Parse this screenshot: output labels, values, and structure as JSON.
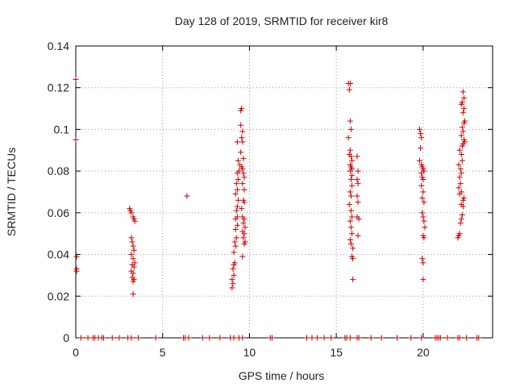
{
  "chart_data": {
    "type": "scatter",
    "title": "Day 128 of 2019, SRMTID for receiver kir8",
    "xlabel": "GPS time / hours",
    "ylabel": "SRMTID / TECUs",
    "xlim": [
      0,
      24
    ],
    "ylim": [
      0,
      0.14
    ],
    "xticks": [
      0,
      5,
      10,
      15,
      20
    ],
    "xtick_labels": [
      "0",
      "5",
      "10",
      "15",
      "20"
    ],
    "yticks": [
      0,
      0.02,
      0.04,
      0.06,
      0.08,
      0.1,
      0.12,
      0.14
    ],
    "ytick_labels": [
      "0",
      "0.02",
      "0.04",
      "0.06",
      "0.08",
      "0.1",
      "0.12",
      "0.14"
    ],
    "grid": true,
    "marker": "+",
    "series": [
      {
        "name": "SRMTID",
        "color": "#cc0000",
        "points": [
          [
            0.0,
            0.124
          ],
          [
            0.0,
            0.095
          ],
          [
            0.05,
            0.039
          ],
          [
            0.05,
            0.033
          ],
          [
            0.05,
            0.032
          ],
          [
            3.1,
            0.062
          ],
          [
            3.15,
            0.061
          ],
          [
            3.2,
            0.06
          ],
          [
            3.3,
            0.058
          ],
          [
            3.35,
            0.057
          ],
          [
            3.4,
            0.056
          ],
          [
            3.2,
            0.048
          ],
          [
            3.25,
            0.046
          ],
          [
            3.3,
            0.044
          ],
          [
            3.35,
            0.042
          ],
          [
            3.2,
            0.04
          ],
          [
            3.3,
            0.038
          ],
          [
            3.4,
            0.036
          ],
          [
            3.25,
            0.035
          ],
          [
            3.35,
            0.034
          ],
          [
            3.2,
            0.032
          ],
          [
            3.3,
            0.031
          ],
          [
            3.25,
            0.029
          ],
          [
            3.35,
            0.028
          ],
          [
            3.3,
            0.027
          ],
          [
            3.3,
            0.021
          ],
          [
            6.4,
            0.068
          ],
          [
            9.0,
            0.024
          ],
          [
            9.05,
            0.026
          ],
          [
            9.0,
            0.028
          ],
          [
            9.1,
            0.03
          ],
          [
            9.05,
            0.033
          ],
          [
            9.1,
            0.035
          ],
          [
            9.15,
            0.036
          ],
          [
            9.1,
            0.041
          ],
          [
            9.2,
            0.044
          ],
          [
            9.15,
            0.046
          ],
          [
            9.25,
            0.048
          ],
          [
            9.2,
            0.052
          ],
          [
            9.3,
            0.054
          ],
          [
            9.2,
            0.057
          ],
          [
            9.3,
            0.058
          ],
          [
            9.25,
            0.061
          ],
          [
            9.3,
            0.063
          ],
          [
            9.35,
            0.066
          ],
          [
            9.2,
            0.069
          ],
          [
            9.3,
            0.071
          ],
          [
            9.25,
            0.074
          ],
          [
            9.35,
            0.076
          ],
          [
            9.3,
            0.079
          ],
          [
            9.4,
            0.08
          ],
          [
            9.45,
            0.083
          ],
          [
            9.35,
            0.085
          ],
          [
            9.3,
            0.094
          ],
          [
            9.5,
            0.109
          ],
          [
            9.55,
            0.11
          ],
          [
            9.5,
            0.102
          ],
          [
            9.6,
            0.099
          ],
          [
            9.55,
            0.096
          ],
          [
            9.6,
            0.094
          ],
          [
            9.5,
            0.089
          ],
          [
            9.65,
            0.086
          ],
          [
            9.55,
            0.082
          ],
          [
            9.6,
            0.081
          ],
          [
            9.65,
            0.079
          ],
          [
            9.7,
            0.077
          ],
          [
            9.6,
            0.074
          ],
          [
            9.7,
            0.071
          ],
          [
            9.65,
            0.066
          ],
          [
            9.7,
            0.065
          ],
          [
            9.55,
            0.062
          ],
          [
            9.6,
            0.058
          ],
          [
            9.7,
            0.057
          ],
          [
            9.65,
            0.055
          ],
          [
            9.75,
            0.053
          ],
          [
            9.6,
            0.051
          ],
          [
            9.7,
            0.05
          ],
          [
            9.65,
            0.048
          ],
          [
            9.75,
            0.046
          ],
          [
            9.7,
            0.045
          ],
          [
            9.6,
            0.039
          ],
          [
            15.7,
            0.122
          ],
          [
            15.8,
            0.122
          ],
          [
            15.75,
            0.119
          ],
          [
            15.8,
            0.104
          ],
          [
            15.85,
            0.1
          ],
          [
            15.7,
            0.096
          ],
          [
            15.8,
            0.09
          ],
          [
            15.75,
            0.088
          ],
          [
            15.85,
            0.087
          ],
          [
            15.9,
            0.085
          ],
          [
            15.8,
            0.083
          ],
          [
            15.85,
            0.082
          ],
          [
            15.9,
            0.081
          ],
          [
            15.8,
            0.08
          ],
          [
            15.9,
            0.078
          ],
          [
            15.85,
            0.076
          ],
          [
            15.9,
            0.073
          ],
          [
            15.8,
            0.07
          ],
          [
            15.85,
            0.068
          ],
          [
            15.75,
            0.064
          ],
          [
            15.85,
            0.061
          ],
          [
            15.9,
            0.058
          ],
          [
            15.8,
            0.056
          ],
          [
            15.85,
            0.053
          ],
          [
            15.9,
            0.05
          ],
          [
            15.8,
            0.047
          ],
          [
            15.85,
            0.045
          ],
          [
            15.95,
            0.043
          ],
          [
            15.9,
            0.039
          ],
          [
            15.95,
            0.038
          ],
          [
            15.95,
            0.028
          ],
          [
            16.2,
            0.087
          ],
          [
            16.25,
            0.08
          ],
          [
            16.2,
            0.076
          ],
          [
            16.25,
            0.074
          ],
          [
            16.2,
            0.068
          ],
          [
            16.25,
            0.065
          ],
          [
            16.2,
            0.058
          ],
          [
            16.3,
            0.057
          ],
          [
            16.25,
            0.049
          ],
          [
            19.8,
            0.1
          ],
          [
            19.85,
            0.098
          ],
          [
            19.9,
            0.096
          ],
          [
            19.85,
            0.091
          ],
          [
            19.8,
            0.085
          ],
          [
            19.9,
            0.083
          ],
          [
            19.95,
            0.082
          ],
          [
            20.0,
            0.081
          ],
          [
            19.9,
            0.079
          ],
          [
            20.05,
            0.08
          ],
          [
            19.95,
            0.077
          ],
          [
            20.0,
            0.076
          ],
          [
            19.9,
            0.073
          ],
          [
            20.0,
            0.07
          ],
          [
            19.95,
            0.067
          ],
          [
            20.05,
            0.065
          ],
          [
            19.95,
            0.06
          ],
          [
            20.0,
            0.058
          ],
          [
            20.05,
            0.056
          ],
          [
            20.1,
            0.053
          ],
          [
            20.0,
            0.049
          ],
          [
            20.05,
            0.048
          ],
          [
            19.95,
            0.038
          ],
          [
            20.0,
            0.036
          ],
          [
            20.0,
            0.028
          ],
          [
            22.0,
            0.048
          ],
          [
            22.05,
            0.049
          ],
          [
            22.1,
            0.05
          ],
          [
            22.15,
            0.055
          ],
          [
            22.2,
            0.057
          ],
          [
            22.25,
            0.059
          ],
          [
            22.3,
            0.063
          ],
          [
            22.2,
            0.064
          ],
          [
            22.3,
            0.066
          ],
          [
            22.35,
            0.067
          ],
          [
            22.1,
            0.069
          ],
          [
            22.2,
            0.07
          ],
          [
            22.05,
            0.072
          ],
          [
            22.15,
            0.074
          ],
          [
            22.1,
            0.077
          ],
          [
            22.2,
            0.079
          ],
          [
            22.15,
            0.081
          ],
          [
            22.05,
            0.083
          ],
          [
            22.25,
            0.085
          ],
          [
            22.2,
            0.088
          ],
          [
            22.1,
            0.09
          ],
          [
            22.25,
            0.092
          ],
          [
            22.3,
            0.093
          ],
          [
            22.4,
            0.094
          ],
          [
            22.35,
            0.095
          ],
          [
            22.2,
            0.097
          ],
          [
            22.3,
            0.099
          ],
          [
            22.25,
            0.101
          ],
          [
            22.35,
            0.103
          ],
          [
            22.4,
            0.104
          ],
          [
            22.3,
            0.108
          ],
          [
            22.35,
            0.11
          ],
          [
            22.2,
            0.112
          ],
          [
            22.25,
            0.113
          ],
          [
            22.35,
            0.115
          ],
          [
            22.3,
            0.118
          ],
          [
            0.3,
            0
          ],
          [
            0.7,
            0
          ],
          [
            1.0,
            0
          ],
          [
            1.1,
            0
          ],
          [
            1.3,
            0
          ],
          [
            1.5,
            0
          ],
          [
            1.6,
            0
          ],
          [
            2.1,
            0
          ],
          [
            2.5,
            0
          ],
          [
            3.0,
            0
          ],
          [
            3.2,
            0
          ],
          [
            3.6,
            0
          ],
          [
            4.6,
            0
          ],
          [
            6.2,
            0
          ],
          [
            6.3,
            0
          ],
          [
            6.5,
            0
          ],
          [
            7.3,
            0
          ],
          [
            7.7,
            0
          ],
          [
            8.3,
            0
          ],
          [
            8.9,
            0
          ],
          [
            9.1,
            0
          ],
          [
            9.4,
            0
          ],
          [
            9.6,
            0
          ],
          [
            11.2,
            0
          ],
          [
            11.3,
            0
          ],
          [
            13.3,
            0
          ],
          [
            13.6,
            0
          ],
          [
            13.9,
            0
          ],
          [
            14.3,
            0
          ],
          [
            14.7,
            0
          ],
          [
            15.5,
            0
          ],
          [
            15.6,
            0
          ],
          [
            15.8,
            0
          ],
          [
            16.2,
            0
          ],
          [
            16.3,
            0
          ],
          [
            17.0,
            0
          ],
          [
            17.6,
            0
          ],
          [
            18.5,
            0
          ],
          [
            19.3,
            0
          ],
          [
            19.9,
            0
          ],
          [
            20.7,
            0
          ],
          [
            20.8,
            0
          ],
          [
            20.9,
            0
          ],
          [
            21.0,
            0
          ],
          [
            21.4,
            0
          ],
          [
            22.0,
            0
          ],
          [
            22.1,
            0
          ],
          [
            22.5,
            0
          ],
          [
            23.1,
            0
          ],
          [
            23.2,
            0
          ]
        ]
      }
    ]
  }
}
